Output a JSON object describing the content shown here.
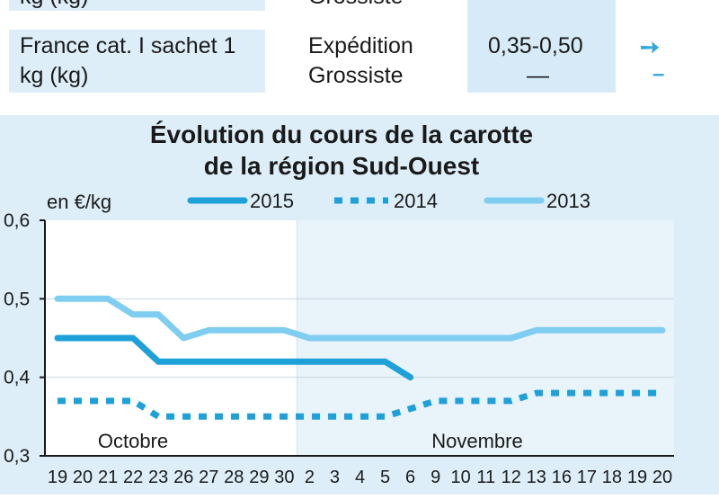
{
  "table": {
    "top_row": {
      "product": "kg (kg)",
      "stage": "Grossiste"
    },
    "row": {
      "product_line1": "France cat. I sachet 1",
      "product_line2": "kg (kg)",
      "stage1": "Expédition",
      "stage2": "Grossiste",
      "price1": "0,35-0,50",
      "price2": "—",
      "trend1": "➙",
      "trend2": "–"
    }
  },
  "chart_data": {
    "type": "line",
    "title": "Évolution du cours de la carotte de la région Sud-Ouest",
    "title_line1": "Évolution du cours de la carotte",
    "title_line2": "de la région Sud-Ouest",
    "ylabel": "en €/kg",
    "ylim": [
      0.3,
      0.6
    ],
    "yticks": [
      "0,6",
      "0,5",
      "0,4",
      "0,3"
    ],
    "month_labels": [
      "Octobre",
      "Novembre"
    ],
    "categories": [
      "19",
      "20",
      "21",
      "22",
      "23",
      "26",
      "27",
      "28",
      "29",
      "30",
      "2",
      "3",
      "4",
      "5",
      "6",
      "9",
      "10",
      "11",
      "12",
      "13",
      "16",
      "17",
      "18",
      "19",
      "20"
    ],
    "legend_position": "top",
    "series": [
      {
        "name": "2015",
        "style": "solid",
        "color": "#1ea0d8",
        "values": [
          0.45,
          0.45,
          0.45,
          0.45,
          0.42,
          0.42,
          0.42,
          0.42,
          0.42,
          0.42,
          0.42,
          0.42,
          0.42,
          0.42,
          0.4,
          null,
          null,
          null,
          null,
          null,
          null,
          null,
          null,
          null,
          null
        ]
      },
      {
        "name": "2014",
        "style": "dashed",
        "color": "#1ea0d8",
        "values": [
          0.37,
          0.37,
          0.37,
          0.37,
          0.35,
          0.35,
          0.35,
          0.35,
          0.35,
          0.35,
          0.35,
          0.35,
          0.35,
          0.35,
          0.36,
          0.37,
          0.37,
          0.37,
          0.37,
          0.38,
          0.38,
          0.38,
          0.38,
          0.38,
          0.38
        ]
      },
      {
        "name": "2013",
        "style": "solid",
        "color": "#7fcdf0",
        "values": [
          0.5,
          0.5,
          0.5,
          0.48,
          0.48,
          0.45,
          0.46,
          0.46,
          0.46,
          0.46,
          0.45,
          0.45,
          0.45,
          0.45,
          0.45,
          0.45,
          0.45,
          0.45,
          0.45,
          0.46,
          0.46,
          0.46,
          0.46,
          0.46,
          0.46
        ]
      }
    ]
  }
}
